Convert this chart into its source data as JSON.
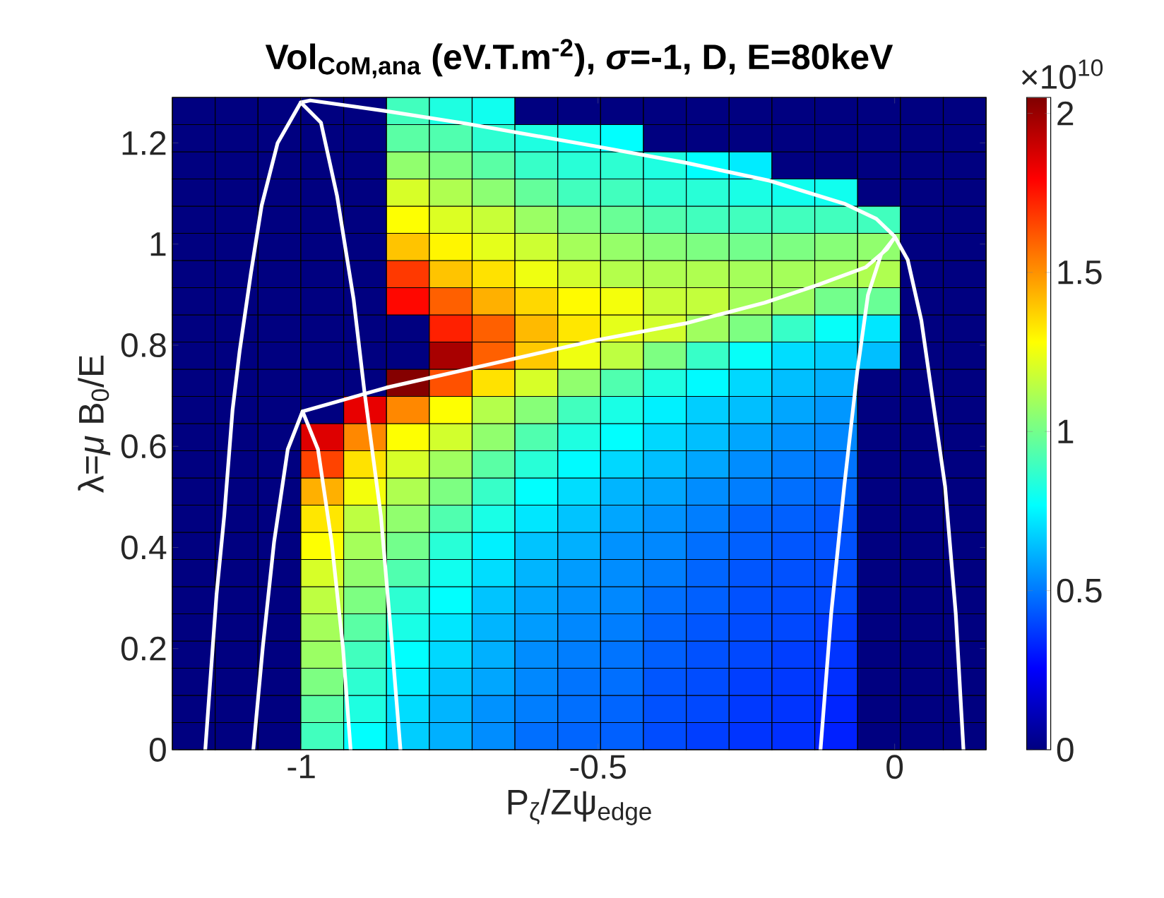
{
  "chart_data": {
    "type": "heatmap",
    "title": "Vol$_{CoM,ana}$ (eV.T.m$^{-2}$), *σ*=-1, D, E=80keV",
    "xlabel": "P$_{ζ}$/Zψ$_{edge}$",
    "ylabel": "λ=*μ* B$_{0}$/E",
    "annotations": [
      "×10$^{10}$"
    ],
    "xlim": [
      -1.2175,
      0.154
    ],
    "ylim": [
      0,
      1.29
    ],
    "xticks": [
      -1,
      -0.5,
      0
    ],
    "yticks": [
      0,
      0.2,
      0.4,
      0.6,
      0.8,
      1,
      1.2
    ],
    "clim": [
      0,
      2.05
    ],
    "cticks": [
      0,
      0.5,
      1,
      1.5,
      2
    ],
    "x": [
      -1.1814,
      -1.1092,
      -1.037,
      -0.9648,
      -0.8926,
      -0.8204,
      -0.7482,
      -0.6761,
      -0.6039,
      -0.5317,
      -0.4595,
      -0.3873,
      -0.3151,
      -0.2429,
      -0.1707,
      -0.0985,
      -0.0263,
      0.0459,
      0.1181
    ],
    "y": [
      1.2631,
      1.2094,
      1.1556,
      1.1019,
      1.0481,
      0.9944,
      0.9406,
      0.8869,
      0.8331,
      0.7794,
      0.7256,
      0.6719,
      0.6181,
      0.5644,
      0.5106,
      0.4569,
      0.4031,
      0.3494,
      0.2956,
      0.2419,
      0.1881,
      0.1344,
      0.0806,
      0.0269
    ],
    "cells": [
      [
        0,
        0,
        0,
        0,
        0,
        0.9,
        0.83,
        0.8,
        0,
        0,
        0,
        0,
        0,
        0,
        0,
        0,
        0,
        0,
        0
      ],
      [
        0,
        0,
        0,
        0,
        0,
        0.95,
        0.93,
        0.86,
        0.83,
        0.8,
        0.77,
        0,
        0,
        0,
        0,
        0,
        0,
        0,
        0
      ],
      [
        0,
        0,
        0,
        0,
        0,
        1.06,
        1.02,
        0.95,
        0.88,
        0.85,
        0.86,
        0.83,
        0.77,
        0.73,
        0,
        0,
        0,
        0,
        0
      ],
      [
        0,
        0,
        0,
        0,
        0,
        1.2,
        1.12,
        1.05,
        0.97,
        0.9,
        0.9,
        0.86,
        0.85,
        0.82,
        0.8,
        0.8,
        0,
        0,
        0
      ],
      [
        0,
        0,
        0,
        0,
        0,
        1.28,
        1.21,
        1.17,
        1.08,
        1.02,
        0.98,
        0.93,
        0.9,
        0.9,
        0.9,
        0.9,
        0.9,
        0,
        0
      ],
      [
        0,
        0,
        0,
        0,
        0,
        1.4,
        1.3,
        1.23,
        1.18,
        1.1,
        1.07,
        1.04,
        1.02,
        1.0,
        1.02,
        1.04,
        1.06,
        0,
        0
      ],
      [
        0,
        0,
        0,
        0,
        0,
        1.68,
        1.4,
        1.34,
        1.25,
        1.19,
        1.13,
        1.12,
        1.12,
        1.1,
        1.1,
        1.1,
        1.12,
        0,
        0
      ],
      [
        0,
        0,
        0,
        0,
        0,
        1.78,
        1.6,
        1.44,
        1.36,
        1.29,
        1.26,
        1.17,
        1.16,
        1.1,
        1.08,
        1.0,
        0.98,
        0,
        0
      ],
      [
        0,
        0,
        0,
        0,
        0,
        0,
        1.73,
        1.6,
        1.42,
        1.33,
        1.23,
        1.19,
        1.09,
        1.02,
        0.88,
        0.78,
        0.72,
        0,
        0
      ],
      [
        0,
        0,
        0,
        0,
        0,
        0,
        1.97,
        1.6,
        1.39,
        1.25,
        1.15,
        1.02,
        0.88,
        0.78,
        0.7,
        0.67,
        0.64,
        0,
        0
      ],
      [
        0,
        0,
        0,
        0,
        0,
        2.04,
        1.63,
        1.34,
        1.2,
        1.06,
        0.93,
        0.83,
        0.76,
        0.69,
        0.64,
        0.61,
        0,
        0,
        0
      ],
      [
        0,
        0,
        0,
        0,
        1.84,
        1.52,
        1.28,
        1.13,
        1.04,
        0.9,
        0.82,
        0.74,
        0.67,
        0.64,
        0.59,
        0.56,
        0,
        0,
        0
      ],
      [
        0,
        0,
        0,
        1.86,
        1.52,
        1.28,
        1.19,
        1.06,
        0.93,
        0.83,
        0.77,
        0.69,
        0.64,
        0.59,
        0.55,
        0.53,
        0,
        0,
        0
      ],
      [
        0,
        0,
        0,
        1.66,
        1.34,
        1.2,
        1.09,
        0.95,
        0.85,
        0.76,
        0.69,
        0.64,
        0.59,
        0.54,
        0.51,
        0.49,
        0,
        0,
        0
      ],
      [
        0,
        0,
        0,
        1.44,
        1.26,
        1.12,
        1.02,
        0.88,
        0.77,
        0.7,
        0.62,
        0.59,
        0.54,
        0.51,
        0.48,
        0.46,
        0,
        0,
        0
      ],
      [
        0,
        0,
        0,
        1.33,
        1.15,
        1.06,
        0.93,
        0.82,
        0.72,
        0.65,
        0.59,
        0.55,
        0.51,
        0.46,
        0.45,
        0.43,
        0,
        0,
        0
      ],
      [
        0,
        0,
        0,
        1.28,
        1.1,
        1.0,
        0.85,
        0.74,
        0.65,
        0.61,
        0.55,
        0.53,
        0.48,
        0.45,
        0.43,
        0.42,
        0,
        0,
        0
      ],
      [
        0,
        0,
        0,
        1.2,
        1.06,
        0.93,
        0.8,
        0.7,
        0.62,
        0.57,
        0.54,
        0.51,
        0.46,
        0.43,
        0.42,
        0.41,
        0,
        0,
        0
      ],
      [
        0,
        0,
        0,
        1.15,
        1.02,
        0.86,
        0.77,
        0.65,
        0.59,
        0.55,
        0.53,
        0.48,
        0.45,
        0.42,
        0.41,
        0.4,
        0,
        0,
        0
      ],
      [
        0,
        0,
        0,
        1.1,
        0.95,
        0.82,
        0.72,
        0.62,
        0.57,
        0.53,
        0.51,
        0.46,
        0.43,
        0.41,
        0.4,
        0.37,
        0,
        0,
        0
      ],
      [
        0,
        0,
        0,
        1.08,
        0.9,
        0.77,
        0.69,
        0.61,
        0.54,
        0.51,
        0.49,
        0.45,
        0.42,
        0.4,
        0.38,
        0.36,
        0,
        0,
        0
      ],
      [
        0,
        0,
        0,
        1.02,
        0.86,
        0.74,
        0.65,
        0.59,
        0.53,
        0.49,
        0.48,
        0.43,
        0.41,
        0.38,
        0.37,
        0.35,
        0,
        0,
        0
      ],
      [
        0,
        0,
        0,
        0.95,
        0.83,
        0.7,
        0.62,
        0.55,
        0.51,
        0.48,
        0.46,
        0.42,
        0.4,
        0.37,
        0.36,
        0.33,
        0,
        0,
        0
      ],
      [
        0,
        0,
        0,
        0.9,
        0.77,
        0.67,
        0.61,
        0.54,
        0.48,
        0.46,
        0.45,
        0.41,
        0.38,
        0.36,
        0.35,
        0.32,
        0,
        0,
        0
      ]
    ],
    "series": [
      {
        "type": "line",
        "color": "#ffffff",
        "x": [
          -1.162,
          -1.143,
          -1.13,
          -1.116,
          -1.104,
          -1.085,
          -1.067,
          -1.04,
          -1.001,
          -0.967,
          -0.94,
          -0.912,
          -0.894,
          -0.866,
          -0.847,
          -0.833
        ],
        "values": [
          0,
          0.307,
          0.463,
          0.672,
          0.789,
          0.943,
          1.076,
          1.2,
          1.28,
          1.24,
          1.096,
          0.891,
          0.711,
          0.463,
          0.203,
          0
        ]
      },
      {
        "type": "line",
        "color": "#ffffff",
        "x": [
          -1.081,
          -1.065,
          -1.046,
          -1.023,
          -0.998,
          -0.972,
          -0.949,
          -0.93,
          -0.917
        ],
        "values": [
          0,
          0.203,
          0.411,
          0.594,
          0.669,
          0.594,
          0.411,
          0.203,
          0
        ]
      },
      {
        "type": "line",
        "color": "#ffffff",
        "x": [
          -1.001,
          -0.985,
          -0.857,
          -0.721,
          -0.507,
          -0.353,
          -0.21,
          -0.085,
          -0.031,
          0.0,
          0.022,
          0.045,
          0.085,
          0.103,
          0.116
        ],
        "values": [
          1.28,
          1.284,
          1.263,
          1.238,
          1.194,
          1.161,
          1.125,
          1.08,
          1.05,
          1.015,
          0.969,
          0.849,
          0.521,
          0.269,
          0
        ]
      },
      {
        "type": "line",
        "color": "#ffffff",
        "x": [
          -0.998,
          -0.857,
          -0.721,
          -0.507,
          -0.353,
          -0.219,
          -0.13,
          -0.049,
          -0.013,
          -0.002,
          -0.023,
          -0.045,
          -0.063,
          -0.085,
          -0.107,
          -0.125
        ],
        "values": [
          0.669,
          0.716,
          0.752,
          0.809,
          0.843,
          0.884,
          0.919,
          0.954,
          0.99,
          1.01,
          0.979,
          0.899,
          0.748,
          0.521,
          0.269,
          0
        ]
      }
    ]
  }
}
